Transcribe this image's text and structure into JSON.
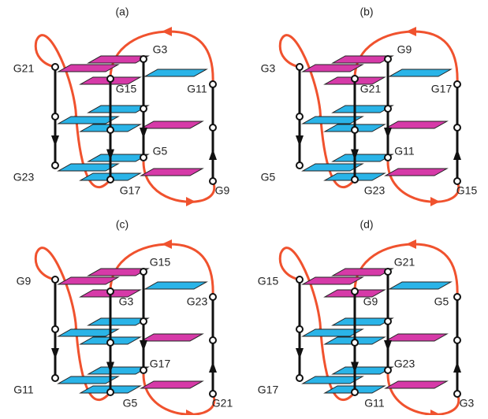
{
  "panels": [
    {
      "label": "(a)",
      "nodes": [
        "G21",
        "G3",
        "G15",
        "G11",
        "G23",
        "G5",
        "G17",
        "G9"
      ]
    },
    {
      "label": "(b)",
      "nodes": [
        "G3",
        "G9",
        "G21",
        "G17",
        "G5",
        "G11",
        "G23",
        "G15"
      ]
    },
    {
      "label": "(c)",
      "nodes": [
        "G9",
        "G15",
        "G3",
        "G23",
        "G11",
        "G17",
        "G5",
        "G21"
      ]
    },
    {
      "label": "(d)",
      "nodes": [
        "G15",
        "G21",
        "G9",
        "G5",
        "G17",
        "G23",
        "G11",
        "G3"
      ]
    }
  ]
}
